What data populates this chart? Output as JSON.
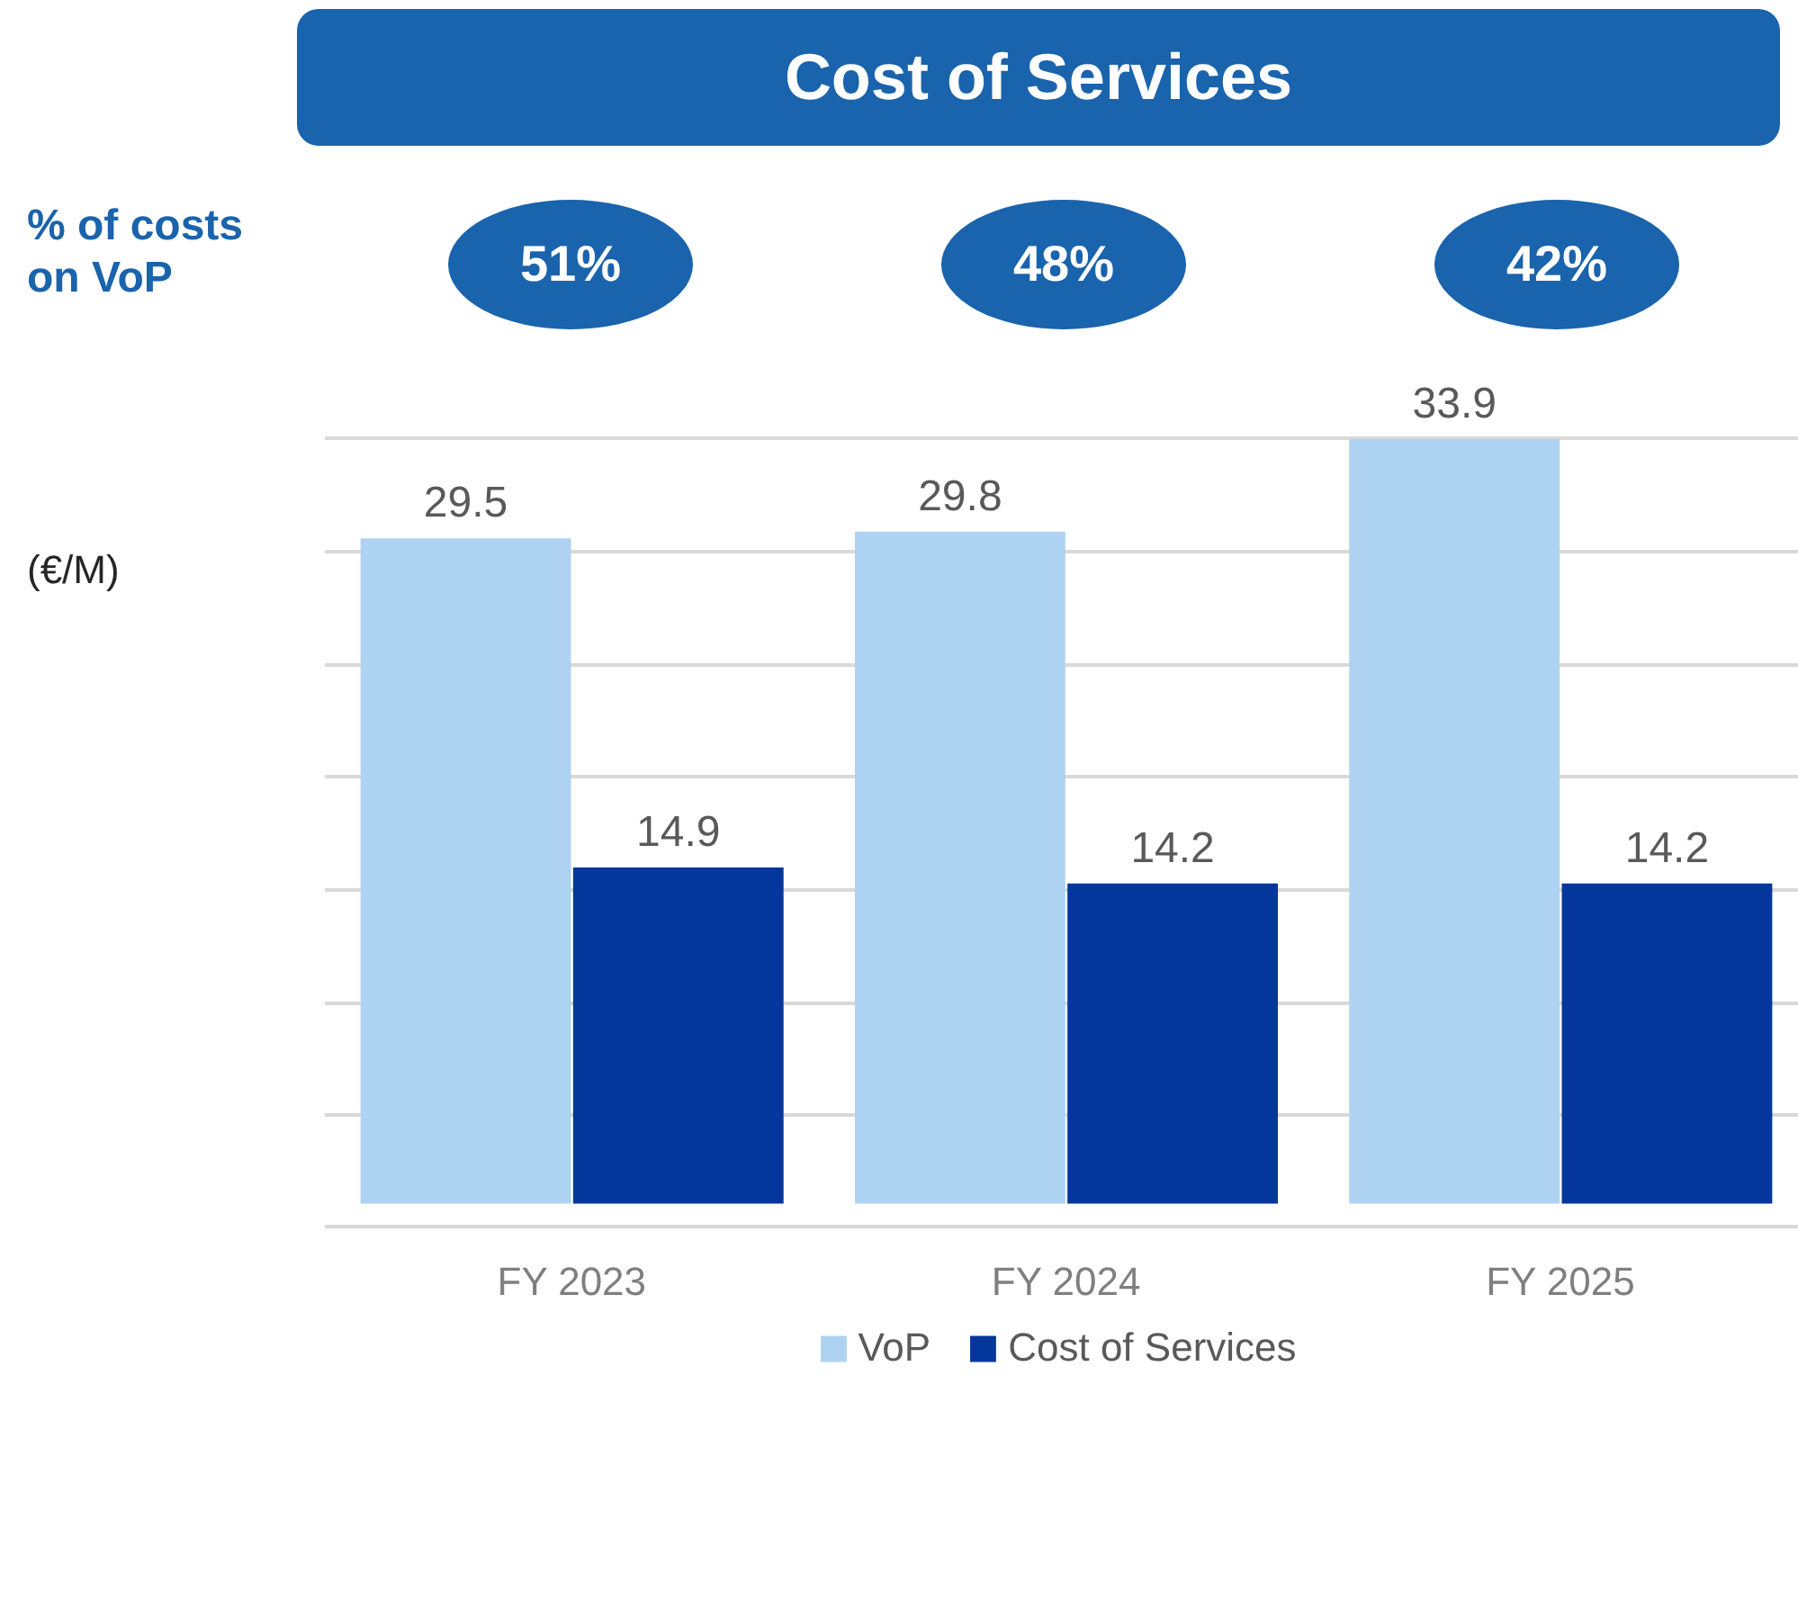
{
  "chart_data": {
    "type": "bar",
    "title": "Cost of Services",
    "categories": [
      "FY 2023",
      "FY 2024",
      "FY 2025"
    ],
    "series": [
      {
        "name": "VoP",
        "color": "#aed2f2",
        "values": [
          29.5,
          29.8,
          33.9
        ]
      },
      {
        "name": "Cost of Services",
        "color": "#05369b",
        "values": [
          14.9,
          14.2,
          14.2
        ]
      }
    ],
    "annotations": [
      "% of costs\non VoP",
      "51%",
      "48%",
      "42%",
      "(€/M)"
    ],
    "yticks": [
      {
        "value": 3.9,
        "label": null
      },
      {
        "value": 8.9,
        "label": null
      },
      {
        "value": 13.9,
        "label": null
      },
      {
        "value": 18.9,
        "label": null
      },
      {
        "value": 23.9,
        "label": null
      },
      {
        "value": 28.9,
        "label": null
      },
      {
        "value": 33.9,
        "label": null
      }
    ],
    "grid": "y",
    "data_labels": true,
    "legend": "bottom",
    "tick_labels": "x"
  }
}
